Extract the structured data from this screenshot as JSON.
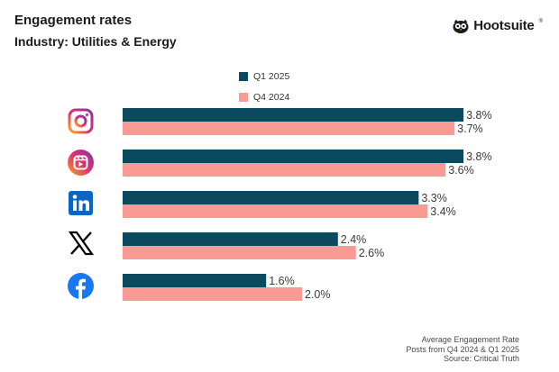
{
  "header": {
    "title": "Engagement rates",
    "subtitle": "Industry: Utilities & Energy"
  },
  "brand": {
    "name": "Hootsuite",
    "reg": "®",
    "icon": "owl-icon"
  },
  "colors": {
    "series_q1_2025": "#0b4a5e",
    "series_q4_2024": "#f99a95",
    "text": "#1c1c1c"
  },
  "footnote": {
    "line1": "Average Engagement Rate",
    "line2": "Posts from Q4 2024 & Q1 2025",
    "line3": "Source: Critical Truth"
  },
  "chart_data": {
    "type": "bar",
    "orientation": "horizontal",
    "title": "Engagement rates",
    "subtitle": "Industry: Utilities & Energy",
    "categories": [
      "Instagram",
      "Instagram Reels",
      "LinkedIn",
      "X",
      "Facebook"
    ],
    "category_icons": [
      "instagram-icon",
      "instagram-reels-icon",
      "linkedin-icon",
      "x-icon",
      "facebook-icon"
    ],
    "series": [
      {
        "name": "Q1 2025",
        "color": "#0b4a5e",
        "values": [
          3.8,
          3.8,
          3.3,
          2.4,
          1.6
        ],
        "labels": [
          "3.8%",
          "3.8%",
          "3.3%",
          "2.4%",
          "1.6%"
        ]
      },
      {
        "name": "Q4 2024",
        "color": "#f99a95",
        "values": [
          3.7,
          3.6,
          3.4,
          2.6,
          2.0
        ],
        "labels": [
          "3.7%",
          "3.6%",
          "3.4%",
          "2.6%",
          "2.0%"
        ]
      }
    ],
    "xlim": [
      0,
      4
    ],
    "legend_position": "top",
    "grid": false,
    "xlabel": "",
    "ylabel": ""
  }
}
